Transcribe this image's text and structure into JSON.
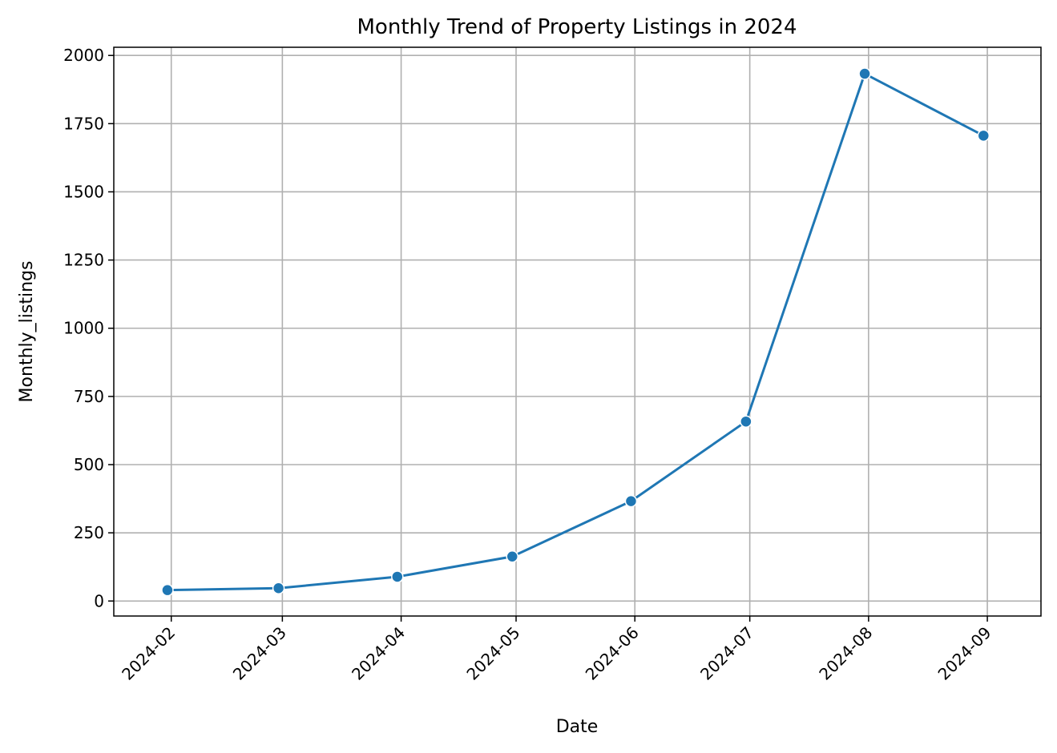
{
  "chart_data": {
    "type": "line",
    "title": "Monthly Trend of Property Listings in 2024",
    "xlabel": "Date",
    "ylabel": "Monthly_listings",
    "x": [
      "2024-01-31",
      "2024-02-29",
      "2024-03-31",
      "2024-04-30",
      "2024-05-31",
      "2024-06-30",
      "2024-07-31",
      "2024-08-31"
    ],
    "x_ticks": [
      "2024-02",
      "2024-03",
      "2024-04",
      "2024-05",
      "2024-06",
      "2024-07",
      "2024-08",
      "2024-09"
    ],
    "x_tick_dates": [
      "2024-02-01",
      "2024-03-01",
      "2024-04-01",
      "2024-05-01",
      "2024-06-01",
      "2024-07-01",
      "2024-08-01",
      "2024-09-01"
    ],
    "xlim": [
      "2024-01-17",
      "2024-09-15"
    ],
    "y_ticks": [
      0,
      250,
      500,
      750,
      1000,
      1250,
      1500,
      1750,
      2000
    ],
    "ylim": [
      -55,
      2030
    ],
    "series": [
      {
        "values": [
          40,
          47,
          89,
          163,
          366,
          658,
          1933,
          1706
        ],
        "color": "#1f77b4"
      }
    ],
    "grid": true,
    "marker": "circle"
  }
}
